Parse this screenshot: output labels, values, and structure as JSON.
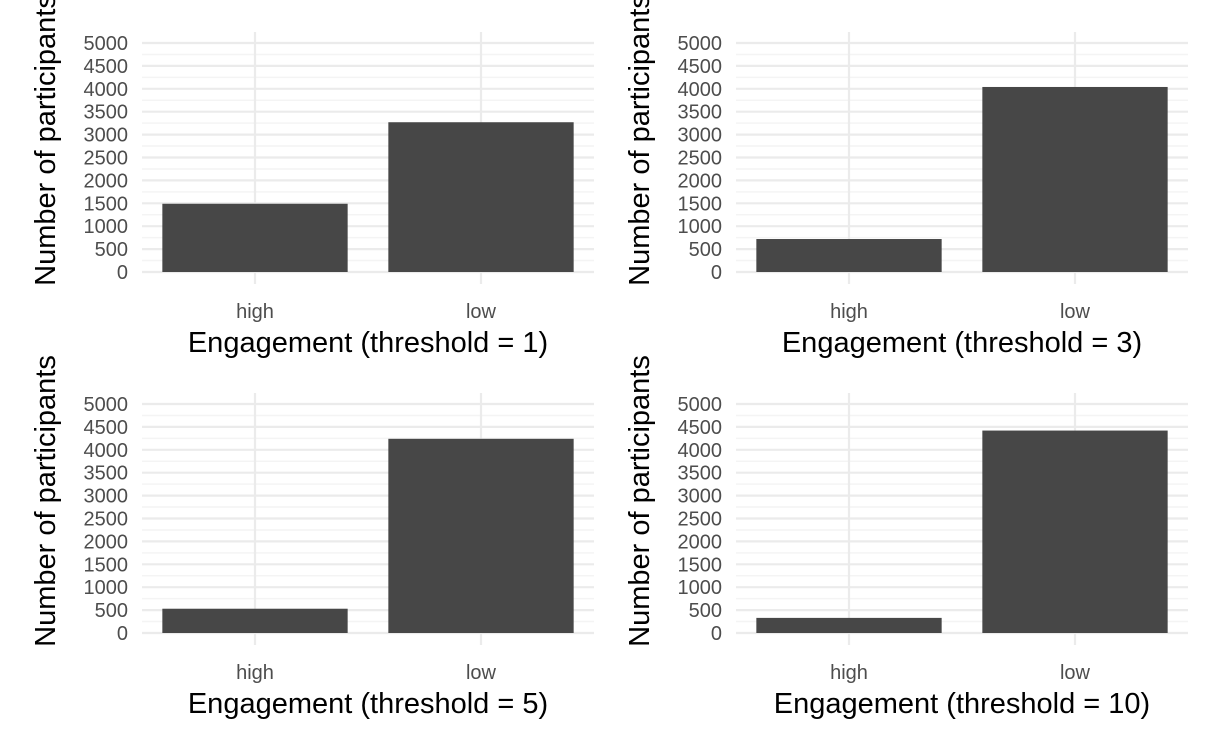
{
  "chart_data": [
    {
      "type": "bar",
      "categories": [
        "high",
        "low"
      ],
      "values": [
        1490,
        3270
      ],
      "xlabel": "Engagement (threshold = 1)",
      "ylabel": "Number of participants",
      "ylim": [
        0,
        5000
      ],
      "yticks": [
        "0",
        "500",
        "1000",
        "1500",
        "2000",
        "2500",
        "3000",
        "3500",
        "4000",
        "4500",
        "5000"
      ],
      "grid": true,
      "legend": "none"
    },
    {
      "type": "bar",
      "categories": [
        "high",
        "low"
      ],
      "values": [
        720,
        4040
      ],
      "xlabel": "Engagement (threshold = 3)",
      "ylabel": "Number of participants",
      "ylim": [
        0,
        5000
      ],
      "yticks": [
        "0",
        "500",
        "1000",
        "1500",
        "2000",
        "2500",
        "3000",
        "3500",
        "4000",
        "4500",
        "5000"
      ],
      "grid": true,
      "legend": "none"
    },
    {
      "type": "bar",
      "categories": [
        "high",
        "low"
      ],
      "values": [
        530,
        4240
      ],
      "xlabel": "Engagement (threshold = 5)",
      "ylabel": "Number of participants",
      "ylim": [
        0,
        5000
      ],
      "yticks": [
        "0",
        "500",
        "1000",
        "1500",
        "2000",
        "2500",
        "3000",
        "3500",
        "4000",
        "4500",
        "5000"
      ],
      "grid": true,
      "legend": "none"
    },
    {
      "type": "bar",
      "categories": [
        "high",
        "low"
      ],
      "values": [
        330,
        4420
      ],
      "xlabel": "Engagement (threshold = 10)",
      "ylabel": "Number of participants",
      "ylim": [
        0,
        5000
      ],
      "yticks": [
        "0",
        "500",
        "1000",
        "1500",
        "2000",
        "2500",
        "3000",
        "3500",
        "4000",
        "4500",
        "5000"
      ],
      "grid": true,
      "legend": "none"
    }
  ],
  "colors": {
    "bar": "#474747",
    "grid_major": "#ebebeb",
    "grid_minor": "#f4f4f4",
    "tick_text": "#4d4d4d",
    "title_text": "#000000",
    "background": "#ffffff"
  }
}
